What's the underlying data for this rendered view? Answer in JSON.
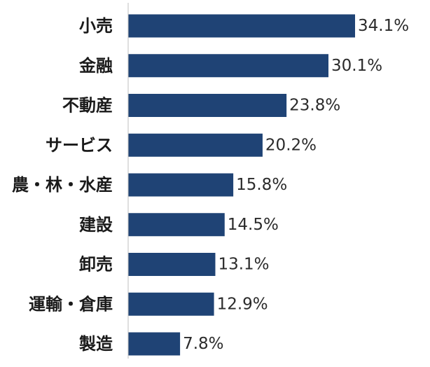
{
  "chart_data": {
    "type": "bar",
    "orientation": "horizontal",
    "title": "",
    "xlabel": "",
    "ylabel": "",
    "categories": [
      "小売",
      "金融",
      "不動産",
      "サービス",
      "農・林・水産",
      "建設",
      "卸売",
      "運輸・倉庫",
      "製造"
    ],
    "values": [
      34.1,
      30.1,
      23.8,
      20.2,
      15.8,
      14.5,
      13.1,
      12.9,
      7.8
    ],
    "value_labels": [
      "34.1%",
      "30.1%",
      "23.8%",
      "20.2%",
      "15.8%",
      "14.5%",
      "13.1%",
      "12.9%",
      "7.8%"
    ],
    "xlim": [
      0,
      34.1
    ],
    "grid": false,
    "legend": "none",
    "bar_color": "#1f4375"
  }
}
